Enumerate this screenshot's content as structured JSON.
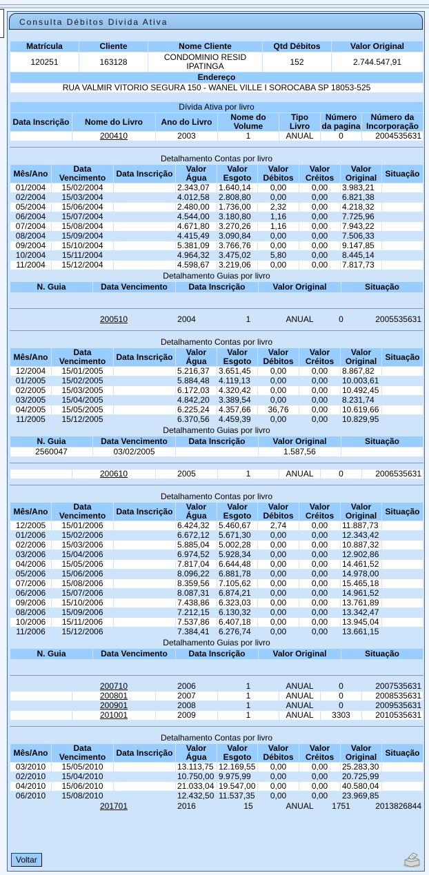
{
  "title": "Consulta Débitos Divida Ativa",
  "cliente_header": [
    "Matrícula",
    "Cliente",
    "Nome Cliente",
    "Qtd Débitos",
    "Valor Original"
  ],
  "cliente": {
    "matricula": "120251",
    "cliente": "163128",
    "nome": "CONDOMINIO RESID IPATINGA",
    "qtd_debitos": "152",
    "valor_original": "2.744.547,91"
  },
  "endereco_label": "Endereço",
  "endereco": "RUA VALMIR VITORIO SEGURA 150 - WANEL VILLE I SOROCABA SP 18053-525",
  "livro_caption": "Dívida Ativa por livro",
  "livro_header": [
    "Data Inscrição",
    "Nome do Livro",
    "Ano do Livro",
    "Nome do Volume",
    "Tipo Livro",
    "Número da pagina",
    "Número da Incorporação"
  ],
  "contas_caption": "Detalhamento Contas por livro",
  "contas_header": [
    "Mês/Ano",
    "Data Vencimento",
    "Data Inscrição",
    "Valor Água",
    "Valor Esgoto",
    "Valor Débitos",
    "Valor Créitos",
    "Valor Original",
    "Situação"
  ],
  "guias_caption": "Detalhamento Guias por livro",
  "guias_header": [
    "N. Guia",
    "Data Vencimento",
    "Data Inscrição",
    "Valor Original",
    "Situação"
  ],
  "livros": [
    {
      "data_inscricao": "",
      "nome": "200410",
      "ano": "2003",
      "volume": "1",
      "tipo": "ANUAL",
      "pagina": "0",
      "incorporacao": "2004535631",
      "contas": [
        [
          "01/2004",
          "15/02/2004",
          "",
          "2.343,07",
          "1.640,14",
          "0,00",
          "0,00",
          "3.983,21",
          ""
        ],
        [
          "02/2004",
          "15/03/2004",
          "",
          "4.012,58",
          "2.808,80",
          "0,00",
          "0,00",
          "6.821,38",
          ""
        ],
        [
          "05/2004",
          "15/06/2004",
          "",
          "2.480,00",
          "1.736,00",
          "2,32",
          "0,00",
          "4.218,32",
          ""
        ],
        [
          "06/2004",
          "15/07/2004",
          "",
          "4.544,00",
          "3.180,80",
          "1,16",
          "0,00",
          "7.725,96",
          ""
        ],
        [
          "07/2004",
          "15/08/2004",
          "",
          "4.671,80",
          "3.270,26",
          "1,16",
          "0,00",
          "7.943,22",
          ""
        ],
        [
          "08/2004",
          "15/09/2004",
          "",
          "4.415,49",
          "3.090,84",
          "0,00",
          "0,00",
          "7.506,33",
          ""
        ],
        [
          "09/2004",
          "15/10/2004",
          "",
          "5.381,09",
          "3.766,76",
          "0,00",
          "0,00",
          "9.147,85",
          ""
        ],
        [
          "10/2004",
          "15/11/2004",
          "",
          "4.964,32",
          "3.475,02",
          "5,80",
          "0,00",
          "8.445,14",
          ""
        ],
        [
          "11/2004",
          "15/12/2004",
          "",
          "4.598,67",
          "3.219,06",
          "0,00",
          "0,00",
          "7.817,73",
          ""
        ]
      ],
      "guias": []
    },
    {
      "data_inscricao": "",
      "nome": "200510",
      "ano": "2004",
      "volume": "1",
      "tipo": "ANUAL",
      "pagina": "0",
      "incorporacao": "2005535631",
      "contas": [
        [
          "12/2004",
          "15/01/2005",
          "",
          "5.216,37",
          "3.651,45",
          "0,00",
          "0,00",
          "8.867,82",
          ""
        ],
        [
          "01/2005",
          "15/02/2005",
          "",
          "5.884,48",
          "4.119,13",
          "0,00",
          "0,00",
          "10.003,61",
          ""
        ],
        [
          "02/2005",
          "15/03/2005",
          "",
          "6.172,03",
          "4.320,42",
          "0,00",
          "0,00",
          "10.492,45",
          ""
        ],
        [
          "03/2005",
          "15/04/2005",
          "",
          "4.842,20",
          "3.389,54",
          "0,00",
          "0,00",
          "8.231,74",
          ""
        ],
        [
          "04/2005",
          "15/05/2005",
          "",
          "6.225,24",
          "4.357,66",
          "36,76",
          "0,00",
          "10.619,66",
          ""
        ],
        [
          "11/2005",
          "15/12/2005",
          "",
          "6.370,56",
          "4.459,39",
          "0,00",
          "0,00",
          "10.829,95",
          ""
        ]
      ],
      "guias": [
        [
          "2560047",
          "03/02/2005",
          "",
          "1.587,56",
          ""
        ]
      ]
    },
    {
      "data_inscricao": "",
      "nome": "200610",
      "ano": "2005",
      "volume": "1",
      "tipo": "ANUAL",
      "pagina": "0",
      "incorporacao": "2006535631",
      "contas": [
        [
          "12/2005",
          "15/01/2006",
          "",
          "6.424,32",
          "5.460,67",
          "2,74",
          "0,00",
          "11.887,73",
          ""
        ],
        [
          "01/2006",
          "15/02/2006",
          "",
          "6.672,12",
          "5.671,30",
          "0,00",
          "0,00",
          "12.343,42",
          ""
        ],
        [
          "02/2006",
          "15/03/2006",
          "",
          "5.885,04",
          "5.002,28",
          "0,00",
          "0,00",
          "10.887,32",
          ""
        ],
        [
          "03/2006",
          "15/04/2006",
          "",
          "6.974,52",
          "5.928,34",
          "0,00",
          "0,00",
          "12.902,86",
          ""
        ],
        [
          "04/2006",
          "15/05/2006",
          "",
          "7.817,04",
          "6.644,48",
          "0,00",
          "0,00",
          "14.461,52",
          ""
        ],
        [
          "05/2006",
          "15/06/2006",
          "",
          "8.096,22",
          "6.881,78",
          "0,00",
          "0,00",
          "14.978,00",
          ""
        ],
        [
          "07/2006",
          "15/08/2006",
          "",
          "8.359,56",
          "7.105,62",
          "0,00",
          "0,00",
          "15.465,18",
          ""
        ],
        [
          "06/2006",
          "15/07/2006",
          "",
          "8.087,31",
          "6.874,21",
          "0,00",
          "0,00",
          "14.961,52",
          ""
        ],
        [
          "09/2006",
          "15/10/2006",
          "",
          "7.438,86",
          "6.323,03",
          "0,00",
          "0,00",
          "13.761,89",
          ""
        ],
        [
          "08/2006",
          "15/09/2006",
          "",
          "7.212,15",
          "6.130,32",
          "0,00",
          "0,00",
          "13.342,47",
          ""
        ],
        [
          "10/2006",
          "15/11/2006",
          "",
          "7.537,86",
          "6.407,18",
          "0,00",
          "0,00",
          "13.945,04",
          ""
        ],
        [
          "11/2006",
          "15/12/2006",
          "",
          "7.384,41",
          "6.276,74",
          "0,00",
          "0,00",
          "13.661,15",
          ""
        ]
      ],
      "guias": []
    },
    {
      "data_inscricao": "",
      "nome": "200710",
      "ano": "2006",
      "volume": "1",
      "tipo": "ANUAL",
      "pagina": "0",
      "incorporacao": "2007535631"
    },
    {
      "data_inscricao": "",
      "nome": "200801",
      "ano": "2007",
      "volume": "1",
      "tipo": "ANUAL",
      "pagina": "0",
      "incorporacao": "2008535631"
    },
    {
      "data_inscricao": "",
      "nome": "200901",
      "ano": "2008",
      "volume": "1",
      "tipo": "ANUAL",
      "pagina": "0",
      "incorporacao": "2009535631"
    },
    {
      "data_inscricao": "",
      "nome": "201001",
      "ano": "2009",
      "volume": "1",
      "tipo": "ANUAL",
      "pagina": "3303",
      "incorporacao": "2010535631",
      "contas": [
        [
          "03/2010",
          "15/05/2010",
          "",
          "13.113,75",
          "12.169,55",
          "0,00",
          "0,00",
          "25.283,30",
          ""
        ],
        [
          "02/2010",
          "15/04/2010",
          "",
          "10.750,00",
          "9.975,99",
          "0,00",
          "0,00",
          "20.725,99",
          ""
        ],
        [
          "04/2010",
          "15/06/2010",
          "",
          "21.033,04",
          "19.547,00",
          "0,00",
          "0,00",
          "40.580,04",
          ""
        ],
        [
          "06/2010",
          "15/08/2010",
          "",
          "12.432,50",
          "11.537,35",
          "0,00",
          "0,00",
          "23.969,85",
          ""
        ]
      ]
    },
    {
      "data_inscricao": "",
      "nome": "201701",
      "ano": "2016",
      "volume": "15",
      "tipo": "ANUAL",
      "pagina": "1751",
      "incorporacao": "2013826844"
    }
  ],
  "voltar_label": "Voltar",
  "icons": {
    "print": "printer-icon"
  },
  "colors": {
    "header": "#99ccff",
    "panel": "#cde4fa",
    "row_alt": "#cde4fa",
    "row": "#ffffff"
  }
}
